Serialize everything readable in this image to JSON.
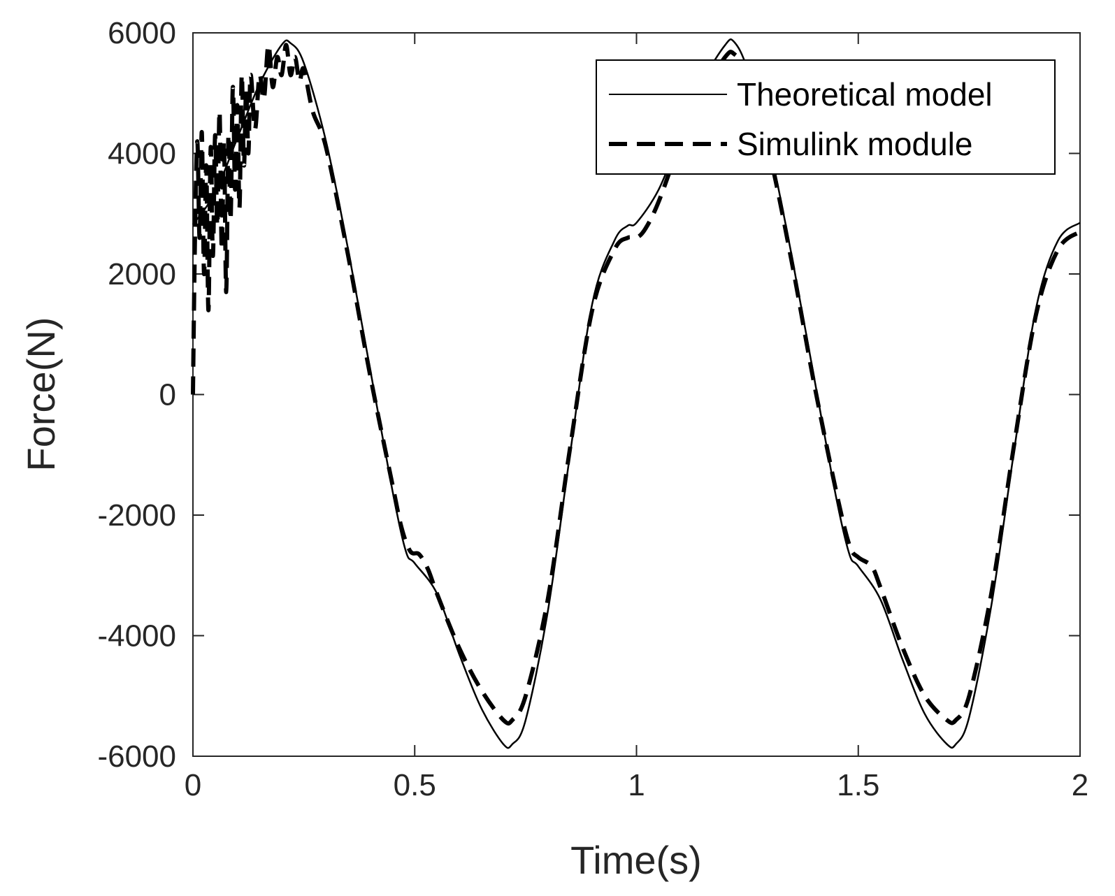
{
  "chart_data": {
    "type": "line",
    "title": "",
    "xlabel": "Time(s)",
    "ylabel": "Force(N)",
    "xlim": [
      0,
      2
    ],
    "ylim": [
      -6000,
      6000
    ],
    "x_ticks": [
      0,
      0.5,
      1,
      1.5,
      2
    ],
    "y_ticks": [
      -6000,
      -4000,
      -2000,
      0,
      2000,
      4000,
      6000
    ],
    "x_tick_labels": [
      "0",
      "0.5",
      "1",
      "1.5",
      "2"
    ],
    "y_tick_labels": [
      "-6000",
      "-4000",
      "-2000",
      "0",
      "2000",
      "4000",
      "6000"
    ],
    "grid": false,
    "legend_position": "top-right",
    "series": [
      {
        "name": "Theoretical model",
        "style": "solid",
        "color": "#000000",
        "points": [
          [
            0.0,
            2820
          ],
          [
            0.05,
            3350
          ],
          [
            0.1,
            4250
          ],
          [
            0.15,
            5150
          ],
          [
            0.2,
            5800
          ],
          [
            0.22,
            5830
          ],
          [
            0.25,
            5500
          ],
          [
            0.3,
            4200
          ],
          [
            0.35,
            2400
          ],
          [
            0.4,
            400
          ],
          [
            0.45,
            -1600
          ],
          [
            0.48,
            -2600
          ],
          [
            0.5,
            -2800
          ],
          [
            0.55,
            -3300
          ],
          [
            0.6,
            -4300
          ],
          [
            0.65,
            -5200
          ],
          [
            0.7,
            -5800
          ],
          [
            0.72,
            -5800
          ],
          [
            0.75,
            -5400
          ],
          [
            0.8,
            -3600
          ],
          [
            0.85,
            -1000
          ],
          [
            0.9,
            1500
          ],
          [
            0.95,
            2550
          ],
          [
            0.98,
            2800
          ],
          [
            1.0,
            2850
          ],
          [
            1.05,
            3400
          ],
          [
            1.1,
            4300
          ],
          [
            1.15,
            5200
          ],
          [
            1.2,
            5800
          ],
          [
            1.22,
            5850
          ],
          [
            1.25,
            5400
          ],
          [
            1.3,
            4100
          ],
          [
            1.35,
            2300
          ],
          [
            1.4,
            300
          ],
          [
            1.45,
            -1700
          ],
          [
            1.48,
            -2650
          ],
          [
            1.5,
            -2850
          ],
          [
            1.55,
            -3400
          ],
          [
            1.6,
            -4400
          ],
          [
            1.65,
            -5300
          ],
          [
            1.7,
            -5800
          ],
          [
            1.72,
            -5800
          ],
          [
            1.75,
            -5350
          ],
          [
            1.8,
            -3500
          ],
          [
            1.85,
            -1000
          ],
          [
            1.9,
            1400
          ],
          [
            1.95,
            2550
          ],
          [
            2.0,
            2850
          ]
        ]
      },
      {
        "name": "Simulink module",
        "style": "dashed",
        "color": "#000000",
        "points": [
          [
            0.0,
            0
          ],
          [
            0.005,
            2800
          ],
          [
            0.01,
            4200
          ],
          [
            0.015,
            2600
          ],
          [
            0.02,
            4350
          ],
          [
            0.025,
            2000
          ],
          [
            0.03,
            3800
          ],
          [
            0.035,
            1400
          ],
          [
            0.04,
            4100
          ],
          [
            0.045,
            2300
          ],
          [
            0.05,
            4300
          ],
          [
            0.055,
            2800
          ],
          [
            0.06,
            4700
          ],
          [
            0.065,
            2400
          ],
          [
            0.07,
            4200
          ],
          [
            0.075,
            1700
          ],
          [
            0.08,
            4300
          ],
          [
            0.085,
            2900
          ],
          [
            0.09,
            5100
          ],
          [
            0.095,
            3400
          ],
          [
            0.1,
            4800
          ],
          [
            0.105,
            3100
          ],
          [
            0.11,
            5300
          ],
          [
            0.115,
            3800
          ],
          [
            0.12,
            5100
          ],
          [
            0.125,
            4000
          ],
          [
            0.13,
            5300
          ],
          [
            0.14,
            4400
          ],
          [
            0.15,
            5300
          ],
          [
            0.16,
            4900
          ],
          [
            0.17,
            5800
          ],
          [
            0.18,
            5100
          ],
          [
            0.19,
            5600
          ],
          [
            0.2,
            5300
          ],
          [
            0.21,
            5800
          ],
          [
            0.22,
            5300
          ],
          [
            0.23,
            5600
          ],
          [
            0.24,
            5200
          ],
          [
            0.25,
            5400
          ],
          [
            0.27,
            4700
          ],
          [
            0.3,
            4100
          ],
          [
            0.35,
            2300
          ],
          [
            0.4,
            300
          ],
          [
            0.45,
            -1500
          ],
          [
            0.47,
            -2200
          ],
          [
            0.49,
            -2600
          ],
          [
            0.51,
            -2650
          ],
          [
            0.53,
            -2900
          ],
          [
            0.55,
            -3300
          ],
          [
            0.6,
            -4200
          ],
          [
            0.65,
            -4900
          ],
          [
            0.7,
            -5400
          ],
          [
            0.72,
            -5400
          ],
          [
            0.75,
            -5000
          ],
          [
            0.8,
            -3400
          ],
          [
            0.85,
            -900
          ],
          [
            0.9,
            1400
          ],
          [
            0.95,
            2400
          ],
          [
            0.98,
            2600
          ],
          [
            1.0,
            2600
          ],
          [
            1.02,
            2750
          ],
          [
            1.05,
            3200
          ],
          [
            1.1,
            4200
          ],
          [
            1.15,
            5000
          ],
          [
            1.2,
            5600
          ],
          [
            1.22,
            5650
          ],
          [
            1.25,
            5300
          ],
          [
            1.3,
            4000
          ],
          [
            1.35,
            2200
          ],
          [
            1.4,
            200
          ],
          [
            1.45,
            -1600
          ],
          [
            1.48,
            -2500
          ],
          [
            1.5,
            -2700
          ],
          [
            1.53,
            -2850
          ],
          [
            1.55,
            -3200
          ],
          [
            1.6,
            -4200
          ],
          [
            1.65,
            -5000
          ],
          [
            1.7,
            -5400
          ],
          [
            1.72,
            -5400
          ],
          [
            1.75,
            -5000
          ],
          [
            1.8,
            -3300
          ],
          [
            1.85,
            -900
          ],
          [
            1.9,
            1300
          ],
          [
            1.95,
            2400
          ],
          [
            2.0,
            2700
          ]
        ]
      }
    ]
  }
}
